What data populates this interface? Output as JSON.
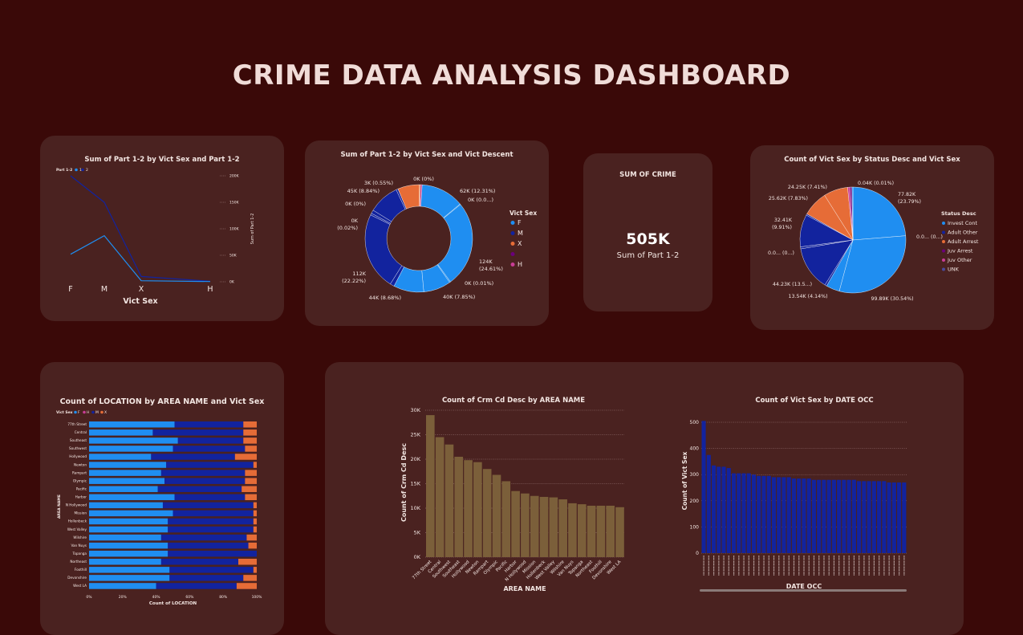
{
  "title": "CRIME DATA ANALYSIS DASHBOARD",
  "colors": {
    "F": "#1f8ef1",
    "M": "#12239e",
    "X": "#e66c37",
    "H": "#c83d95",
    "UNK": "#6b007b",
    "bg": "#3a0908",
    "card": "#4a2220",
    "bar": "#7b5f3a"
  },
  "kpi": {
    "title": "SUM OF CRIME",
    "value": "505K",
    "label": "Sum of Part 1-2"
  },
  "chart_data": [
    {
      "type": "line",
      "title": "Sum of Part 1-2 by Vict Sex and Part 1-2",
      "legend_title": "Part 1-2",
      "legend": [
        "1",
        "2"
      ],
      "categories": [
        "F",
        "M",
        "X",
        "H"
      ],
      "xlabel": "Vict Sex",
      "y_ticks": [
        "200K",
        "150K",
        "100K",
        "50K",
        "0K"
      ],
      "ylabel": "Sum of Part 1-2",
      "series": [
        {
          "name": "1",
          "values": [
            200000,
            150000,
            10000,
            1000
          ]
        },
        {
          "name": "2",
          "values": [
            52000,
            87000,
            2000,
            500
          ]
        }
      ]
    },
    {
      "type": "pie",
      "title": "Sum of Part 1-2 by Vict Sex and Vict Descent",
      "legend_title": "Vict Sex",
      "legend": [
        "F",
        "M",
        "X",
        "",
        "H"
      ],
      "labels": [
        "0K (0%)",
        "62K (12.31%)",
        "0K (0.0...)",
        "124K (24.61%)",
        "0K (0.01%)",
        "40K (7.85%)",
        "44K (8.68%)",
        "112K (22.22%)",
        "0K (0.02%)",
        "0K (0%)",
        "45K (8.84%)",
        "3K (0.55%)"
      ]
    },
    {
      "type": "pie",
      "title": "Count of Vict Sex by Status Desc and Vict Sex",
      "legend_title": "Status Desc",
      "legend": [
        "Invest Cont",
        "Adult Other",
        "Adult Arrest",
        "Juv Arrest",
        "Juv Other",
        "UNK"
      ],
      "labels": [
        "0.04K (0.01%)",
        "77.82K (23.79%)",
        "0.0... (0...)",
        "99.89K (30.54%)",
        "13.54K (4.14%)",
        "44.23K (13.5...)",
        "0.0... (0...)",
        "32.41K (9.91%)",
        "25.62K (7.83%)",
        "24.25K (7.41%)"
      ]
    },
    {
      "type": "bar",
      "title": "Count of LOCATION by AREA NAME and Vict Sex",
      "legend_title": "Vict Sex",
      "legend": [
        "F",
        "H",
        "M",
        "X"
      ],
      "categories": [
        "77th Street",
        "Central",
        "Southeast",
        "Southwest",
        "Hollywood",
        "Newton",
        "Rampart",
        "Olympic",
        "Pacific",
        "Harbor",
        "N Hollywood",
        "Mission",
        "Hollenbeck",
        "West Valley",
        "Wilshire",
        "Van Nuys",
        "Topanga",
        "Northeast",
        "Foothill",
        "Devonshire",
        "West LA"
      ],
      "series": [
        {
          "name": "F",
          "values": [
            51,
            38,
            53,
            50,
            37,
            46,
            43,
            45,
            41,
            51,
            44,
            50,
            47,
            47,
            43,
            47,
            47,
            43,
            48,
            48,
            40
          ]
        },
        {
          "name": "M",
          "values": [
            41,
            54,
            39,
            43,
            50,
            52,
            50,
            48,
            50,
            42,
            54,
            48,
            51,
            51,
            51,
            48,
            53,
            46,
            50,
            44,
            48
          ]
        },
        {
          "name": "X",
          "values": [
            8,
            8,
            8,
            7,
            13,
            2,
            7,
            7,
            9,
            7,
            2,
            2,
            2,
            2,
            6,
            5,
            0,
            11,
            2,
            8,
            12
          ]
        }
      ],
      "x_ticks": [
        "0%",
        "20%",
        "40%",
        "60%",
        "80%",
        "100%"
      ],
      "xlabel": "Count of LOCATION",
      "ylabel": "AREA NAME"
    },
    {
      "type": "bar",
      "title": "Count of Crm Cd Desc by AREA NAME",
      "categories": [
        "77th Street",
        "Central",
        "Southwest",
        "Southeast",
        "Hollywood",
        "Newton",
        "Rampart",
        "Olympic",
        "Pacific",
        "Harbor",
        "N Hollywood",
        "Mission",
        "Hollenbeck",
        "West Valley",
        "Wilshire",
        "Van Nuys",
        "Topanga",
        "Northeast",
        "Foothill",
        "Devonshire",
        "West LA"
      ],
      "values": [
        29000,
        24500,
        23000,
        20500,
        19800,
        19400,
        18000,
        16800,
        15500,
        13500,
        13000,
        12500,
        12300,
        12200,
        11800,
        11000,
        10800,
        10500,
        10500,
        10500,
        10200
      ],
      "y_ticks": [
        "30K",
        "25K",
        "20K",
        "15K",
        "10K",
        "5K",
        "0K"
      ],
      "xlabel": "AREA NAME",
      "ylabel": "Count of Crm Cd Desc",
      "ylim": [
        0,
        30000
      ]
    },
    {
      "type": "bar",
      "title": "Count of Vict Sex by DATE OCC",
      "values": [
        505,
        375,
        335,
        330,
        330,
        325,
        305,
        305,
        305,
        305,
        300,
        295,
        295,
        295,
        290,
        290,
        290,
        290,
        285,
        285,
        285,
        285,
        280,
        280,
        280,
        280,
        280,
        280,
        280,
        280,
        280,
        275,
        275,
        275,
        275,
        275,
        275,
        270,
        270,
        270,
        270
      ],
      "y_ticks": [
        "500",
        "400",
        "300",
        "200",
        "100",
        "0"
      ],
      "xlabel": "DATE OCC",
      "ylabel": "Count of Vict Sex",
      "ylim": [
        0,
        500
      ]
    }
  ]
}
